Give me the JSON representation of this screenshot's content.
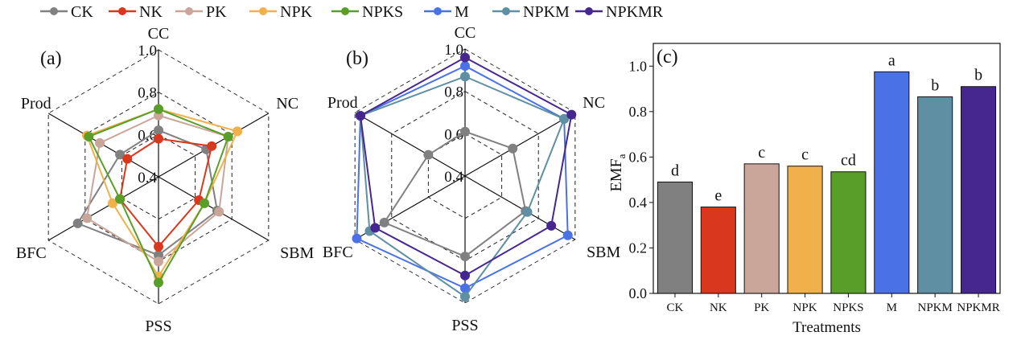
{
  "chart_data": [
    {
      "type": "radar",
      "panel_label": "(a)",
      "axes": [
        "CC",
        "NC",
        "SBM",
        "PSS",
        "BFC",
        "Prod"
      ],
      "rlim": [
        0.4,
        1.0
      ],
      "ticks": [
        "0.4",
        "0.6",
        "0.8",
        "1.0"
      ],
      "tick_values": [
        0.4,
        0.6,
        0.8,
        1.0
      ],
      "series": [
        {
          "name": "CK",
          "color": "#808080",
          "values": [
            0.62,
            0.66,
            0.72,
            0.77,
            0.84,
            0.61
          ]
        },
        {
          "name": "NK",
          "color": "#d9381e",
          "values": [
            0.58,
            0.69,
            0.62,
            0.73,
            0.61,
            0.57
          ]
        },
        {
          "name": "PK",
          "color": "#c9a59a",
          "values": [
            0.69,
            0.78,
            0.73,
            0.8,
            0.79,
            0.72
          ]
        },
        {
          "name": "NPK",
          "color": "#f0b04a",
          "values": [
            0.72,
            0.83,
            0.65,
            0.87,
            0.65,
            0.79
          ]
        },
        {
          "name": "NPKS",
          "color": "#5a9e2a",
          "values": [
            0.72,
            0.78,
            0.65,
            0.9,
            0.61,
            0.78
          ]
        }
      ]
    },
    {
      "type": "radar",
      "panel_label": "(b)",
      "axes": [
        "CC",
        "NC",
        "SBM",
        "PSS",
        "BFC",
        "Prod"
      ],
      "rlim": [
        0.4,
        1.0
      ],
      "ticks": [
        "0.4",
        "0.6",
        "0.8",
        "1.0"
      ],
      "tick_values": [
        0.4,
        0.6,
        0.8,
        1.0
      ],
      "series": [
        {
          "name": "CK",
          "color": "#808080",
          "values": [
            0.61,
            0.66,
            0.73,
            0.78,
            0.84,
            0.6
          ]
        },
        {
          "name": "M",
          "color": "#4a72e6",
          "values": [
            0.92,
            0.94,
            0.96,
            0.93,
            0.99,
            0.97
          ]
        },
        {
          "name": "NPKM",
          "color": "#5f8fa3",
          "values": [
            0.87,
            0.94,
            0.74,
            0.97,
            0.92,
            0.97
          ]
        },
        {
          "name": "NPKMR",
          "color": "#45278f",
          "values": [
            0.96,
            0.98,
            0.87,
            0.87,
            0.89,
            0.97
          ]
        }
      ]
    },
    {
      "type": "bar",
      "panel_label": "(c)",
      "categories": [
        "CK",
        "NK",
        "PK",
        "NPK",
        "NPKS",
        "M",
        "NPKM",
        "NPKMR"
      ],
      "values": [
        0.49,
        0.38,
        0.57,
        0.56,
        0.535,
        0.975,
        0.865,
        0.91
      ],
      "letters": [
        "d",
        "e",
        "c",
        "c",
        "cd",
        "a",
        "b",
        "b"
      ],
      "colors": [
        "#808080",
        "#d9381e",
        "#c9a59a",
        "#f0b04a",
        "#5a9e2a",
        "#4a72e6",
        "#5f8fa3",
        "#45278f"
      ],
      "xlabel": "Treatments",
      "ylabel": "EMF",
      "ylabel_sub": "a",
      "ylim": [
        0,
        1.1
      ],
      "yticks": [
        "0.0",
        "0.2",
        "0.4",
        "0.6",
        "0.8",
        "1.0"
      ],
      "ytick_values": [
        0,
        0.2,
        0.4,
        0.6,
        0.8,
        1.0
      ]
    }
  ],
  "legend": [
    {
      "name": "CK",
      "color": "#808080"
    },
    {
      "name": "NK",
      "color": "#d9381e"
    },
    {
      "name": "PK",
      "color": "#c9a59a"
    },
    {
      "name": "NPK",
      "color": "#f0b04a"
    },
    {
      "name": "NPKS",
      "color": "#5a9e2a"
    },
    {
      "name": "M",
      "color": "#4a72e6"
    },
    {
      "name": "NPKM",
      "color": "#5f8fa3"
    },
    {
      "name": "NPKMR",
      "color": "#45278f"
    }
  ]
}
